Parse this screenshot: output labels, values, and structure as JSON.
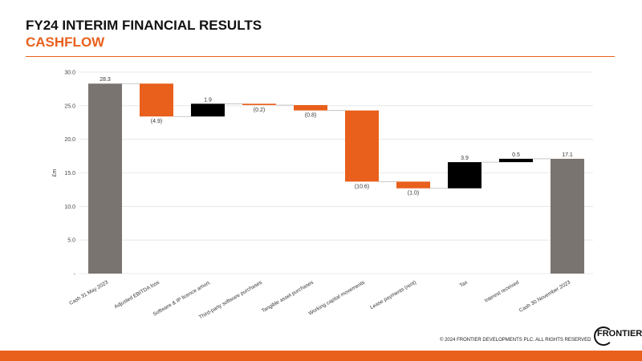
{
  "header": {
    "title": "FY24 INTERIM FINANCIAL RESULTS",
    "subtitle": "CASHFLOW"
  },
  "chart_data": {
    "type": "waterfall",
    "y_label": "£m",
    "categories": [
      "Cash 31 May 2023",
      "Adjusted EBITDA loss",
      "Software & IP licence amort.",
      "Third-party software purchases",
      "Tangible asset purchases",
      "Working capital movements",
      "Lease payments (rent)",
      "Tax",
      "Interest received",
      "Cash 30 November 2023"
    ],
    "measures": [
      "total",
      "relative",
      "relative",
      "relative",
      "relative",
      "relative",
      "relative",
      "relative",
      "relative",
      "total"
    ],
    "values": [
      28.3,
      -4.9,
      1.9,
      -0.2,
      -0.8,
      -10.6,
      -1.0,
      3.9,
      0.5,
      17.1
    ],
    "value_labels": [
      "28.3",
      "(4.9)",
      "1.9",
      "(0.2)",
      "(0.8)",
      "(10.6)",
      "(1.0)",
      "3.9",
      "0.5",
      "17.1"
    ],
    "total_color": "#7a7471",
    "decrease_color": "#e8601c",
    "increase_color": "#000000",
    "ylim": [
      0,
      30
    ],
    "yticks": [
      {
        "value": 0,
        "label": "-"
      },
      {
        "value": 5,
        "label": "5.0"
      },
      {
        "value": 10,
        "label": "10.0"
      },
      {
        "value": 15,
        "label": "15.0"
      },
      {
        "value": 20,
        "label": "20.0"
      },
      {
        "value": 25,
        "label": "25.0"
      },
      {
        "value": 30,
        "label": "30.0"
      }
    ],
    "grid": true
  },
  "footer": {
    "copyright": "© 2024 FRONTIER DEVELOPMENTS PLC. ALL RIGHTS RESERVED",
    "logo": "FRONTIER"
  }
}
